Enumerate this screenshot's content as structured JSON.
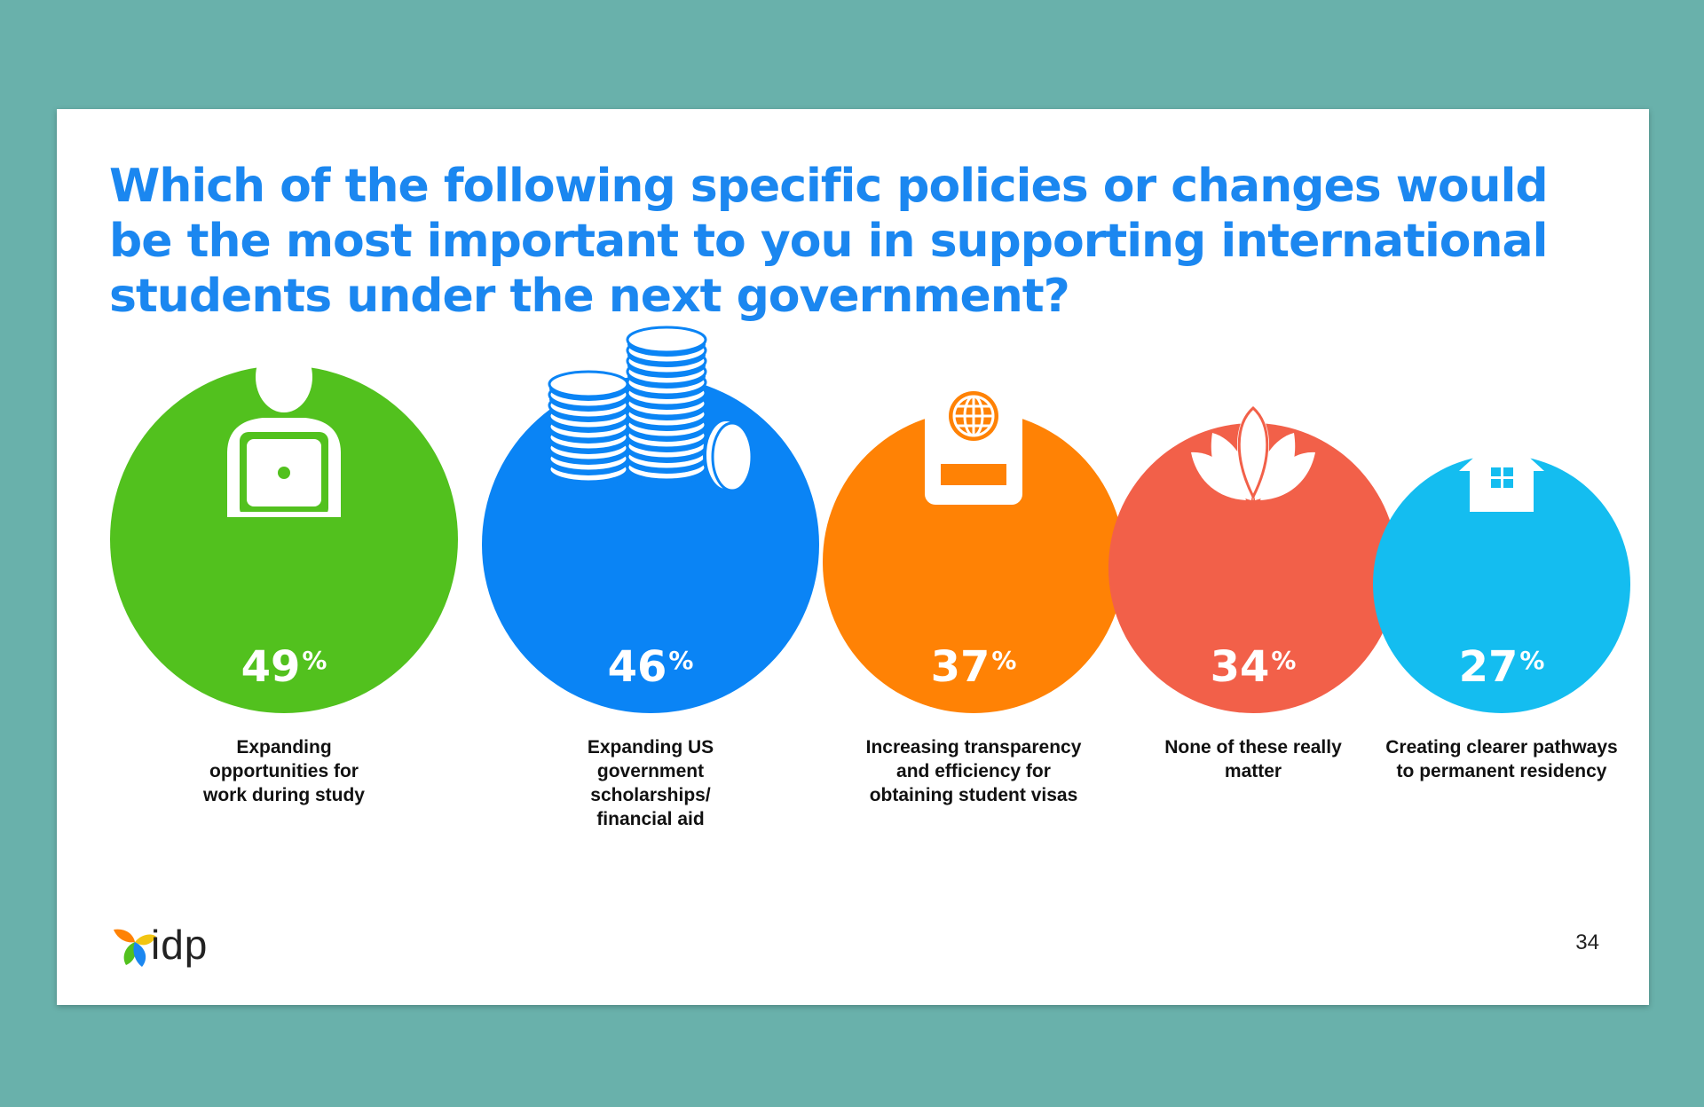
{
  "chart_data": {
    "type": "bubble",
    "title": "Which of the following specific policies or changes would be the most important to you in supporting international students under the next government?",
    "categories": [
      "Expanding opportunities for work during study",
      "Expanding US government scholarships/ financial aid",
      "Increasing transparency and efficiency for obtaining student visas",
      "None of these really matter",
      "Creating clearer pathways to permanent residency"
    ],
    "values": [
      49,
      46,
      37,
      34,
      27
    ],
    "unit": "%",
    "items": [
      {
        "value": "49",
        "label": "Expanding opportunities for work during study",
        "color": "#52c11e",
        "icon": "person-laptop-icon"
      },
      {
        "value": "46",
        "label": "Expanding US government scholarships/ financial aid",
        "color": "#0a84f5",
        "icon": "coin-stacks-icon"
      },
      {
        "value": "37",
        "label": "Increasing transparency and efficiency for obtaining student visas",
        "color": "#ff8205",
        "icon": "passport-icon"
      },
      {
        "value": "34",
        "label": "None of these really matter",
        "color": "#f26049",
        "icon": "lotus-icon"
      },
      {
        "value": "27",
        "label": "Creating clearer pathways to permanent residency",
        "color": "#14bdf0",
        "icon": "house-icon"
      }
    ]
  },
  "footer": {
    "logo_text": "idp",
    "page_number": "34"
  }
}
